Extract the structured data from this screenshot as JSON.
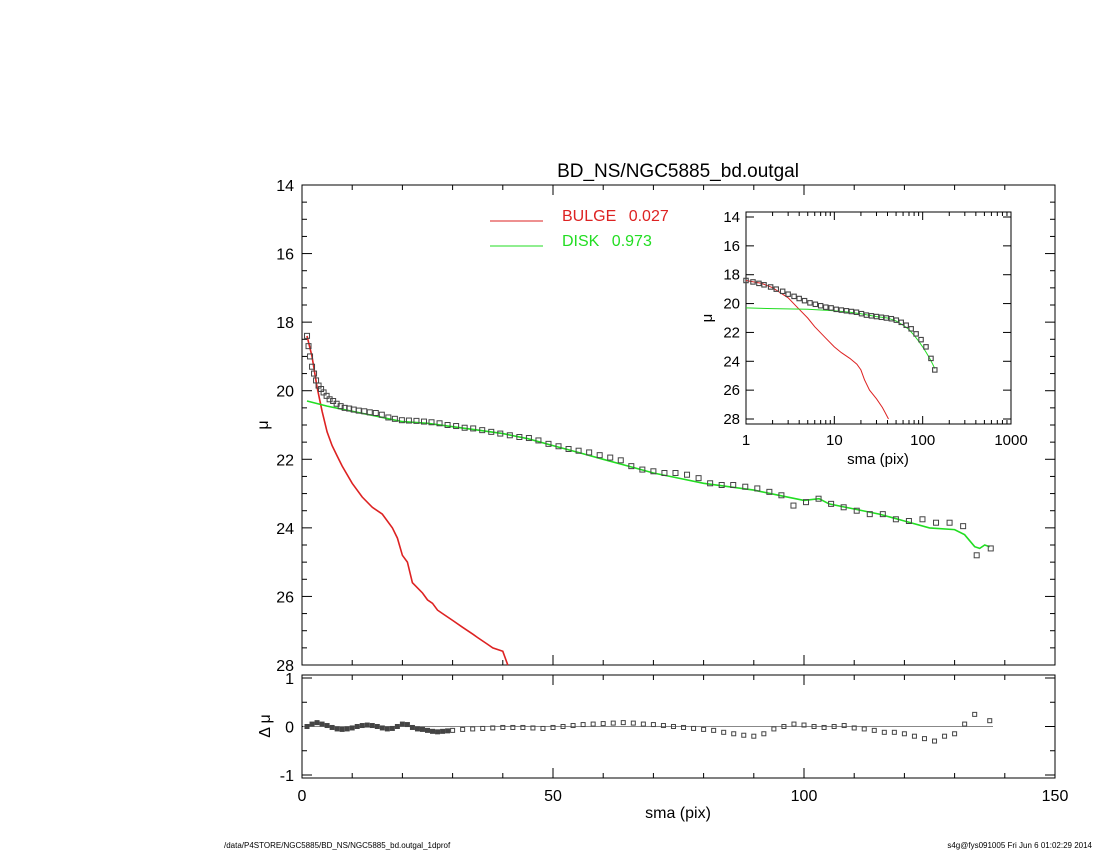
{
  "chart_data": [
    {
      "panel": "main",
      "type": "scatter",
      "title": "BD_NS/NGC5885_bd.outgal",
      "xlabel": "",
      "ylabel": "μ",
      "xlim": [
        0,
        150
      ],
      "ylim": [
        28,
        14
      ],
      "yticks": [
        "14",
        "16",
        "18",
        "20",
        "22",
        "24",
        "26",
        "28"
      ],
      "legend": {
        "placement": "top-center",
        "entries": [
          {
            "name": "BULGE",
            "value": "0.027",
            "color": "#dd2222"
          },
          {
            "name": "DISK",
            "value": "0.973",
            "color": "#22dd22"
          }
        ]
      },
      "series": [
        {
          "name": "BULGE",
          "color": "#dd2222",
          "style": "line",
          "x": [
            1,
            2,
            3,
            4,
            5,
            6,
            7,
            8,
            10,
            12,
            14,
            16,
            18,
            19,
            20,
            21,
            22,
            24,
            25,
            26,
            27,
            28,
            30,
            32,
            34,
            35,
            36,
            37,
            38,
            40,
            41
          ],
          "y": [
            18.4,
            19.0,
            19.9,
            20.6,
            21.2,
            21.6,
            21.9,
            22.2,
            22.7,
            23.1,
            23.4,
            23.6,
            24.0,
            24.3,
            24.8,
            25.0,
            25.6,
            25.9,
            26.1,
            26.2,
            26.4,
            26.5,
            26.7,
            26.9,
            27.1,
            27.2,
            27.3,
            27.4,
            27.5,
            27.6,
            28.0
          ]
        },
        {
          "name": "DISK",
          "color": "#22dd22",
          "style": "line",
          "x": [
            1,
            5,
            10,
            15,
            20,
            25,
            30,
            35,
            40,
            45,
            50,
            55,
            60,
            65,
            70,
            75,
            80,
            85,
            90,
            95,
            100,
            103,
            105,
            110,
            115,
            120,
            125,
            130,
            132,
            134,
            135,
            136,
            137
          ],
          "y": [
            20.3,
            20.45,
            20.6,
            20.75,
            20.9,
            20.95,
            21.05,
            21.15,
            21.25,
            21.4,
            21.6,
            21.8,
            22.0,
            22.2,
            22.4,
            22.55,
            22.7,
            22.8,
            22.9,
            23.05,
            23.2,
            23.15,
            23.3,
            23.45,
            23.6,
            23.8,
            24.0,
            24.05,
            24.2,
            24.55,
            24.6,
            24.5,
            24.55
          ]
        },
        {
          "name": "data",
          "color": "#444444",
          "style": "squares",
          "x": [
            1.0,
            1.3,
            1.6,
            2.0,
            2.4,
            2.8,
            3.3,
            3.8,
            4.3,
            4.9,
            5.5,
            6.2,
            6.9,
            7.7,
            8.5,
            9.4,
            10.3,
            11.3,
            12.4,
            13.5,
            14.7,
            15.9,
            17.2,
            18.5,
            19.9,
            21.3,
            22.8,
            24.3,
            25.8,
            27.4,
            29.0,
            30.7,
            32.4,
            34.1,
            35.9,
            37.7,
            39.5,
            41.4,
            43.3,
            45.2,
            47.1,
            49.1,
            51.1,
            53.1,
            55.1,
            57.2,
            59.3,
            61.4,
            63.5,
            65.6,
            67.8,
            70.0,
            72.2,
            74.4,
            76.7,
            79.0,
            81.3,
            83.6,
            85.9,
            88.3,
            90.7,
            93.1,
            95.5,
            97.9,
            100.4,
            102.9,
            105.4,
            107.9,
            110.5,
            113.1,
            115.7,
            118.3,
            120.9,
            123.6,
            126.3,
            129.0,
            131.7,
            134.4,
            137.2
          ],
          "y": [
            18.4,
            18.7,
            19.0,
            19.3,
            19.5,
            19.7,
            19.85,
            19.95,
            20.05,
            20.15,
            20.25,
            20.3,
            20.38,
            20.45,
            20.5,
            20.52,
            20.55,
            20.58,
            20.6,
            20.63,
            20.65,
            20.7,
            20.78,
            20.82,
            20.86,
            20.87,
            20.88,
            20.9,
            20.92,
            20.95,
            21.0,
            21.03,
            21.08,
            21.1,
            21.15,
            21.2,
            21.25,
            21.3,
            21.35,
            21.38,
            21.45,
            21.55,
            21.62,
            21.7,
            21.75,
            21.8,
            21.88,
            21.95,
            22.03,
            22.2,
            22.3,
            22.35,
            22.4,
            22.4,
            22.45,
            22.55,
            22.7,
            22.75,
            22.75,
            22.8,
            22.85,
            22.95,
            23.05,
            23.35,
            23.25,
            23.15,
            23.3,
            23.4,
            23.5,
            23.6,
            23.6,
            23.75,
            23.8,
            23.75,
            23.85,
            23.85,
            23.95,
            24.8,
            24.6
          ]
        }
      ]
    },
    {
      "panel": "residual",
      "type": "scatter",
      "xlabel": "sma (pix)",
      "ylabel": "Δ μ",
      "xlim": [
        0,
        150
      ],
      "ylim": [
        -1,
        1
      ],
      "xticks": [
        "0",
        "50",
        "100",
        "150"
      ],
      "yticks": [
        "-1",
        "0",
        "1"
      ],
      "series": [
        {
          "name": "residuals",
          "color": "#444444",
          "style": "squares",
          "x": [
            1,
            2,
            3,
            4,
            5,
            6,
            7,
            8,
            9,
            10,
            11,
            12,
            13,
            14,
            15,
            16,
            17,
            18,
            19,
            20,
            21,
            22,
            23,
            24,
            25,
            26,
            27,
            28,
            29,
            30,
            32,
            34,
            36,
            38,
            40,
            42,
            44,
            46,
            48,
            50,
            52,
            54,
            56,
            58,
            60,
            62,
            64,
            66,
            68,
            70,
            72,
            74,
            76,
            78,
            80,
            82,
            84,
            86,
            88,
            90,
            92,
            94,
            96,
            98,
            100,
            102,
            104,
            106,
            108,
            110,
            112,
            114,
            116,
            118,
            120,
            122,
            124,
            126,
            128,
            130,
            132,
            134,
            137
          ],
          "y": [
            0.0,
            0.05,
            0.08,
            0.05,
            0.02,
            -0.02,
            -0.05,
            -0.06,
            -0.05,
            -0.03,
            0.0,
            0.02,
            0.03,
            0.02,
            0.0,
            -0.03,
            -0.05,
            -0.04,
            0.0,
            0.05,
            0.04,
            -0.02,
            -0.05,
            -0.06,
            -0.08,
            -0.1,
            -0.11,
            -0.1,
            -0.09,
            -0.08,
            -0.06,
            -0.05,
            -0.04,
            -0.03,
            -0.02,
            -0.02,
            -0.02,
            -0.03,
            -0.04,
            -0.02,
            0.0,
            0.02,
            0.04,
            0.05,
            0.06,
            0.07,
            0.08,
            0.07,
            0.05,
            0.04,
            0.02,
            0.0,
            -0.02,
            -0.04,
            -0.06,
            -0.08,
            -0.12,
            -0.15,
            -0.18,
            -0.2,
            -0.15,
            -0.05,
            0.0,
            0.05,
            0.03,
            0.0,
            -0.02,
            0.0,
            0.02,
            -0.03,
            -0.05,
            -0.08,
            -0.12,
            -0.12,
            -0.15,
            -0.2,
            -0.25,
            -0.3,
            -0.2,
            -0.15,
            0.05,
            0.25,
            0.12
          ]
        }
      ]
    },
    {
      "panel": "inset",
      "type": "scatter",
      "xscale": "log",
      "xlabel": "sma (pix)",
      "ylabel": "μ",
      "xlim": [
        1,
        1000
      ],
      "ylim": [
        28,
        14
      ],
      "xticks": [
        "1",
        "10",
        "100",
        "1000"
      ],
      "yticks": [
        "14",
        "16",
        "18",
        "20",
        "22",
        "24",
        "26",
        "28"
      ],
      "series": [
        {
          "name": "BULGE",
          "color": "#dd2222",
          "style": "line",
          "x": [
            1,
            1.5,
            2,
            3,
            4,
            5,
            6,
            8,
            10,
            12,
            15,
            18,
            20,
            22,
            25,
            30,
            35,
            38,
            41
          ],
          "y": [
            18.4,
            18.6,
            18.9,
            19.6,
            20.4,
            21.0,
            21.6,
            22.4,
            23.0,
            23.4,
            23.8,
            24.2,
            24.6,
            25.3,
            26.0,
            26.6,
            27.2,
            27.6,
            28.0
          ]
        },
        {
          "name": "DISK",
          "color": "#22dd22",
          "style": "line",
          "x": [
            1,
            2,
            5,
            10,
            15,
            20,
            30,
            40,
            50,
            60,
            70,
            80,
            90,
            100,
            110,
            120,
            130,
            137
          ],
          "y": [
            20.3,
            20.35,
            20.4,
            20.5,
            20.6,
            20.7,
            20.9,
            21.0,
            21.2,
            21.5,
            21.8,
            22.2,
            22.6,
            23.0,
            23.4,
            23.8,
            24.2,
            24.5
          ]
        },
        {
          "name": "data",
          "color": "#444444",
          "style": "squares",
          "x": [
            1.0,
            1.2,
            1.4,
            1.6,
            1.9,
            2.2,
            2.6,
            3.0,
            3.5,
            4.0,
            4.6,
            5.3,
            6.1,
            7.0,
            8.0,
            9.2,
            10.5,
            12.0,
            13.7,
            15.6,
            17.8,
            20.3,
            23.1,
            26.3,
            30.0,
            34.1,
            38.8,
            44.2,
            50.3,
            57.2,
            65.1,
            74.1,
            84.3,
            95.9,
            109.1,
            124.2,
            137.2
          ],
          "y": [
            18.4,
            18.5,
            18.6,
            18.7,
            18.85,
            19.0,
            19.15,
            19.35,
            19.5,
            19.65,
            19.8,
            19.95,
            20.05,
            20.15,
            20.25,
            20.3,
            20.4,
            20.45,
            20.5,
            20.55,
            20.6,
            20.7,
            20.8,
            20.85,
            20.9,
            20.95,
            21.0,
            21.05,
            21.15,
            21.3,
            21.5,
            21.75,
            22.1,
            22.5,
            23.0,
            23.8,
            24.6
          ]
        }
      ]
    }
  ],
  "footer": {
    "path": "/data/P4STORE/NGC5885/BD_NS/NGC5885_bd.outgal_1dprof",
    "user_date": "s4g@fys091005  Fri Jun  6 01:02:29 2014"
  }
}
